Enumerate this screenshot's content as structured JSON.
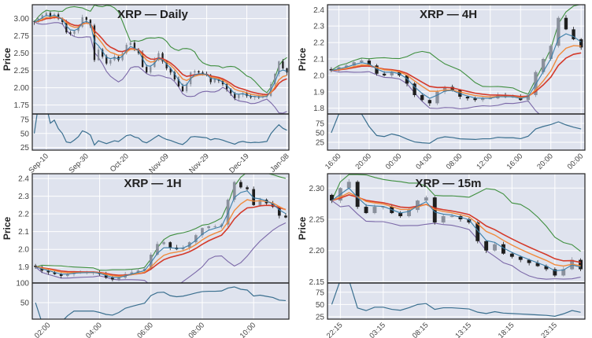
{
  "chart_data": [
    {
      "type": "candlestick",
      "title": "XRP — Daily",
      "ylabel": "Price",
      "ylim": [
        1.62,
        3.2
      ],
      "yticks": [
        "1.75",
        "2.00",
        "2.25",
        "2.50",
        "2.75",
        "3.00"
      ],
      "rsi_ylim": [
        20,
        85
      ],
      "rsi_yticks": [
        "25",
        "50",
        "75"
      ],
      "xticks": [
        "Sep-10",
        "Sep-30",
        "Oct-20",
        "Nov-09",
        "Nov-29",
        "Dec-19",
        "Jan-08"
      ],
      "x": [
        "Sep-04",
        "Sep-06",
        "Sep-08",
        "Sep-10",
        "Sep-12",
        "Sep-14",
        "Sep-16",
        "Sep-18",
        "Sep-20",
        "Sep-22",
        "Sep-24",
        "Sep-26",
        "Sep-28",
        "Sep-30",
        "Oct-02",
        "Oct-04",
        "Oct-06",
        "Oct-08",
        "Oct-10",
        "Oct-12",
        "Oct-14",
        "Oct-16",
        "Oct-18",
        "Oct-20",
        "Oct-22",
        "Oct-24",
        "Oct-26",
        "Oct-28",
        "Oct-30",
        "Nov-01",
        "Nov-03",
        "Nov-05",
        "Nov-07",
        "Nov-09",
        "Nov-11",
        "Nov-13",
        "Nov-15",
        "Nov-17",
        "Nov-19",
        "Nov-21",
        "Nov-23",
        "Nov-25",
        "Nov-27",
        "Nov-29",
        "Dec-01",
        "Dec-03",
        "Dec-05",
        "Dec-07",
        "Dec-09",
        "Dec-11",
        "Dec-13",
        "Dec-15",
        "Dec-17",
        "Dec-19",
        "Dec-21",
        "Dec-23",
        "Dec-25",
        "Dec-27",
        "Dec-29",
        "Dec-31",
        "Jan-02",
        "Jan-04",
        "Jan-06",
        "Jan-08"
      ],
      "close": [
        2.95,
        3.0,
        3.05,
        3.08,
        3.02,
        3.06,
        3.0,
        2.95,
        2.8,
        2.78,
        2.82,
        2.88,
        3.02,
        2.98,
        2.9,
        2.4,
        2.55,
        2.45,
        2.35,
        2.4,
        2.45,
        2.4,
        2.5,
        2.62,
        2.65,
        2.55,
        2.5,
        2.3,
        2.22,
        2.3,
        2.4,
        2.5,
        2.38,
        2.28,
        2.22,
        2.12,
        2.02,
        1.95,
        2.05,
        2.22,
        2.24,
        2.22,
        2.2,
        2.18,
        2.08,
        2.12,
        2.1,
        2.05,
        1.98,
        1.92,
        1.85,
        1.9,
        1.92,
        1.88,
        1.86,
        1.87,
        1.86,
        1.87,
        1.88,
        2.05,
        2.2,
        2.38,
        2.28,
        2.22
      ]
    },
    {
      "type": "candlestick",
      "title": "XRP — 4H",
      "ylabel": "Price",
      "ylim": [
        1.765,
        2.43
      ],
      "yticks": [
        "1.8",
        "1.9",
        "2.0",
        "2.1",
        "2.2",
        "2.3",
        "2.4"
      ],
      "rsi_ylim": [
        4,
        100
      ],
      "rsi_yticks": [
        "25",
        "50",
        "75"
      ],
      "xticks": [
        "16:00",
        "20:00",
        "00:00",
        "04:00",
        "08:00",
        "12:00",
        "16:00",
        "20:00",
        "00:00"
      ],
      "x": [
        "15:00",
        "16:00",
        "17:00",
        "18:00",
        "19:00",
        "20:00",
        "21:00",
        "22:00",
        "23:00",
        "00:00",
        "01:00",
        "02:00",
        "03:00",
        "04:00",
        "05:00",
        "06:00",
        "07:00",
        "08:00",
        "09:00",
        "10:00",
        "11:00",
        "12:00",
        "13:00",
        "14:00",
        "15:00",
        "16:00",
        "17:00",
        "18:00",
        "19:00",
        "20:00",
        "21:00",
        "22:00",
        "23:00",
        "00:00"
      ],
      "close": [
        2.03,
        2.05,
        2.06,
        2.08,
        2.09,
        2.06,
        2.01,
        2.0,
        2.02,
        2.0,
        1.95,
        1.88,
        1.85,
        1.83,
        1.9,
        1.93,
        1.91,
        1.87,
        1.86,
        1.85,
        1.86,
        1.86,
        1.88,
        1.87,
        1.87,
        1.85,
        1.88,
        2.02,
        2.1,
        2.18,
        2.35,
        2.28,
        2.22,
        2.17
      ]
    },
    {
      "type": "candlestick",
      "title": "XRP — 1H",
      "ylabel": "Price",
      "ylim": [
        1.81,
        2.427
      ],
      "yticks": [
        "1.9",
        "2.0",
        "2.1",
        "2.2",
        "2.3",
        "2.4"
      ],
      "rsi_ylim": [
        8,
        100
      ],
      "rsi_yticks": [
        "50",
        "100"
      ],
      "xticks": [
        "02:00",
        "04:00",
        "06:00",
        "08:00",
        "10:00"
      ],
      "x": [
        "01:30",
        "01:45",
        "02:00",
        "02:15",
        "02:30",
        "02:45",
        "03:00",
        "03:15",
        "03:30",
        "03:45",
        "04:00",
        "04:15",
        "04:30",
        "04:45",
        "05:00",
        "05:15",
        "05:30",
        "05:45",
        "06:00",
        "06:15",
        "06:30",
        "06:45",
        "07:00",
        "07:15",
        "07:30",
        "07:45",
        "08:00",
        "08:15",
        "08:30",
        "08:45",
        "09:00",
        "09:15",
        "09:30",
        "09:45",
        "10:00",
        "10:15",
        "10:30",
        "10:45",
        "11:00",
        "11:15"
      ],
      "close": [
        1.9,
        1.88,
        1.87,
        1.86,
        1.85,
        1.86,
        1.87,
        1.87,
        1.87,
        1.87,
        1.86,
        1.84,
        1.83,
        1.84,
        1.86,
        1.87,
        1.88,
        1.89,
        1.97,
        2.03,
        2.04,
        2.01,
        2.0,
        2.01,
        2.04,
        2.08,
        2.12,
        2.13,
        2.13,
        2.14,
        2.28,
        2.38,
        2.35,
        2.34,
        2.25,
        2.28,
        2.26,
        2.24,
        2.19,
        2.18
      ]
    },
    {
      "type": "candlestick",
      "title": "XRP — 15m",
      "ylabel": "Price",
      "ylim": [
        2.148,
        2.323
      ],
      "yticks": [
        "2.15",
        "2.20",
        "2.25",
        "2.30"
      ],
      "rsi_ylim": [
        20,
        94
      ],
      "rsi_yticks": [
        "25",
        "50",
        "75"
      ],
      "xticks": [
        "22:15",
        "03:15",
        "08:15",
        "13:15",
        "18:15",
        "23:15"
      ],
      "x": [
        "21:15",
        "22:15",
        "23:15",
        "00:15",
        "01:15",
        "02:15",
        "03:15",
        "04:15",
        "05:15",
        "06:15",
        "07:15",
        "08:15",
        "09:15",
        "10:15",
        "11:15",
        "12:15",
        "13:15",
        "14:15",
        "15:15",
        "16:15",
        "17:15",
        "18:15",
        "19:15",
        "20:15",
        "21:15",
        "22:15",
        "23:15",
        "00:15",
        "01:15",
        "02:15"
      ],
      "close": [
        2.28,
        2.3,
        2.31,
        2.27,
        2.26,
        2.27,
        2.27,
        2.26,
        2.255,
        2.265,
        2.28,
        2.285,
        2.245,
        2.255,
        2.255,
        2.25,
        2.245,
        2.215,
        2.2,
        2.21,
        2.195,
        2.19,
        2.185,
        2.18,
        2.175,
        2.17,
        2.16,
        2.17,
        2.185,
        2.17
      ]
    }
  ],
  "colors": {
    "plot_bg": "#dfe3ee",
    "grid": "#ffffff",
    "candle_down": "#1e1e1e",
    "candle_up": "#8a909c",
    "ema_fast": "#3b7ea8",
    "ema_mid": "#f08a3c",
    "ema_slow": "#d43a2a",
    "bb_upper": "#3f8f3f",
    "bb_lower": "#7b68a8",
    "rsi": "#3a6f8f"
  }
}
